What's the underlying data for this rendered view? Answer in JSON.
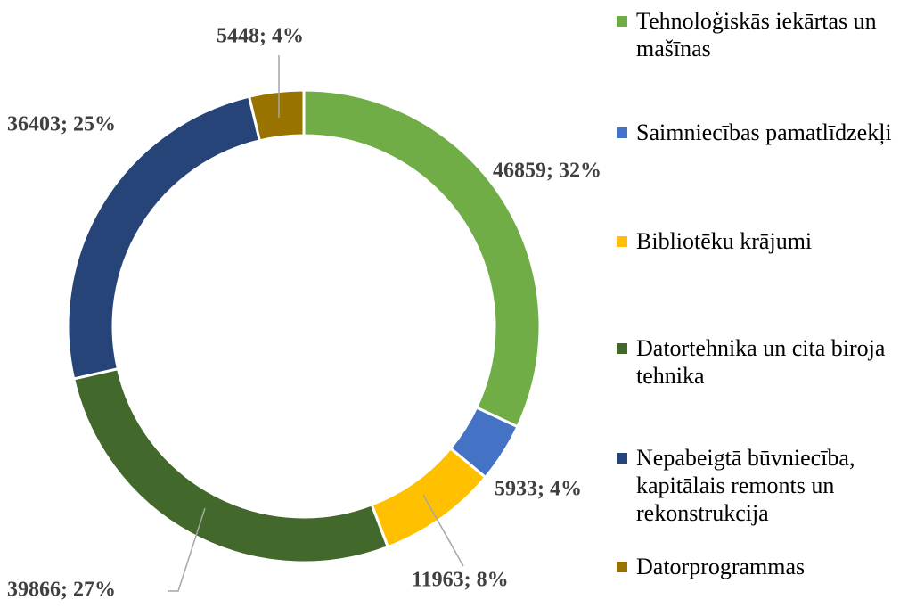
{
  "chart_data": {
    "type": "donut",
    "categories": [
      "Tehnoloģiskās iekārtas un mašīnas",
      "Saimniecības pamatlīdzekļi",
      "Bibliotēku krājumi",
      "Datortehnika un cita biroja tehnika",
      "Nepabeigtā būvniecība, kapitālais remonts un rekonstrukcija",
      "Datorprogrammas"
    ],
    "values": [
      46859,
      5933,
      11963,
      39866,
      36403,
      5448
    ],
    "value_labels": [
      "46859; 32%",
      "5933; 4%",
      "11963; 8%",
      "39866; 27%",
      "36403; 25%",
      "5448; 4%"
    ],
    "colors": [
      "#70ad47",
      "#4472c4",
      "#ffc000",
      "#43682b",
      "#264478",
      "#997300"
    ],
    "legend": "right"
  }
}
